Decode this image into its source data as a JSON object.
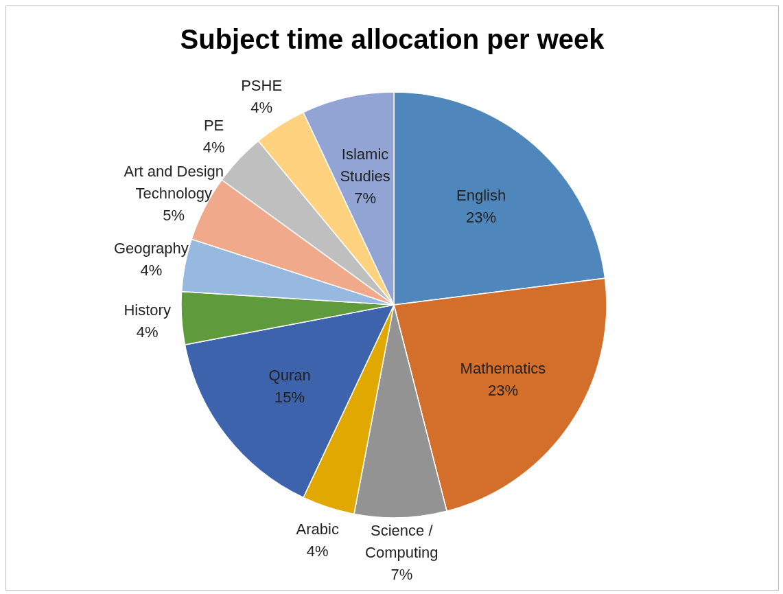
{
  "chart_data": {
    "type": "pie",
    "title": "Subject time allocation per week",
    "categories": [
      "English",
      "Mathematics",
      "Science / Computing",
      "Arabic",
      "Quran",
      "History",
      "Geography",
      "Art and Design Technology",
      "PE",
      "PSHE",
      "Islamic Studies"
    ],
    "values": [
      23,
      23,
      7,
      4,
      15,
      4,
      4,
      5,
      4,
      4,
      7
    ],
    "value_labels": [
      "23%",
      "23%",
      "7%",
      "4%",
      "15%",
      "4%",
      "4%",
      "5%",
      "4%",
      "4%",
      "7%"
    ],
    "colors": [
      "#4f87bc",
      "#d46f2b",
      "#939393",
      "#e0a800",
      "#3c63ab",
      "#5f9a3c",
      "#97b8df",
      "#f0a98a",
      "#bfbfbf",
      "#ffd27f",
      "#91a4d4"
    ],
    "legend": false
  }
}
